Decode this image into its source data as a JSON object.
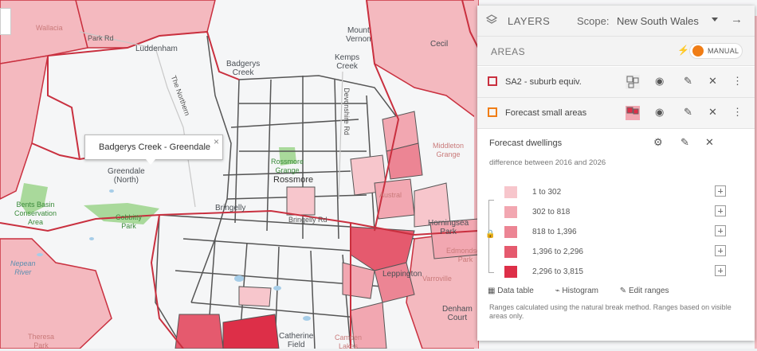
{
  "map": {
    "places": [
      {
        "name": "Badgerys\nCreek"
      },
      {
        "name": "Mount\nVernon"
      },
      {
        "name": "Kemps\nCreek"
      },
      {
        "name": "Cecil"
      },
      {
        "name": "Greendale\n(North)"
      },
      {
        "name": "Rossmore"
      },
      {
        "name": "Bringelly"
      },
      {
        "name": "Leppington"
      },
      {
        "name": "Horningsea\nPark"
      },
      {
        "name": "Middleton\nGrange"
      },
      {
        "name": "Austral"
      },
      {
        "name": "Catherine\nField"
      },
      {
        "name": "Theresa\nPark"
      },
      {
        "name": "Wallacia"
      },
      {
        "name": "Luddenham"
      },
      {
        "name": "Bents Basin\nConservation\nArea"
      },
      {
        "name": "Cobbitty\nPark"
      },
      {
        "name": "Rossmore\nGrange"
      },
      {
        "name": "Nepean\nRiver"
      },
      {
        "name": "Denham\nCourt"
      },
      {
        "name": "Edmondson\nPark"
      },
      {
        "name": "Camden\nLakes"
      },
      {
        "name": "Varroville"
      }
    ],
    "roads": [
      "Park Rd",
      "The Northern",
      "Devonshire Rd",
      "Bringelly Rd"
    ],
    "popup": {
      "text": "Badgerys Creek - Greendale",
      "close": "×"
    },
    "colors": {
      "fill_light": "#f6c7cd",
      "fill_mid": "#ef9aa6",
      "fill_dark": "#e3475f",
      "border_red": "#c9303f",
      "border_gray": "#555555",
      "outside": "#f4b9bf"
    }
  },
  "panel": {
    "title": "LAYERS",
    "scope_label": "Scope:",
    "scope_value": "New South Wales",
    "areas_label": "AREAS",
    "toggle_label": "MANUAL",
    "layers": [
      {
        "name": "SA2 - suburb equiv.",
        "swatch": "#c9303f"
      },
      {
        "name": "Forecast small areas",
        "swatch": "#f07d16"
      }
    ],
    "sub": {
      "title": "Forecast dwellings",
      "description": "difference between 2016 and 2026",
      "legend": [
        {
          "range": "1 to 302",
          "color": "#f7c6cc"
        },
        {
          "range": "302 to 818",
          "color": "#f2a7b1"
        },
        {
          "range": "818 to 1,396",
          "color": "#ec8594"
        },
        {
          "range": "1,396 to 2,296",
          "color": "#e55a6e"
        },
        {
          "range": "2,296 to 3,815",
          "color": "#dd2f48"
        }
      ],
      "links": [
        "Data table",
        "Histogram",
        "Edit ranges"
      ],
      "note": "Ranges calculated using the natural break method. Ranges based on visible areas only."
    }
  }
}
